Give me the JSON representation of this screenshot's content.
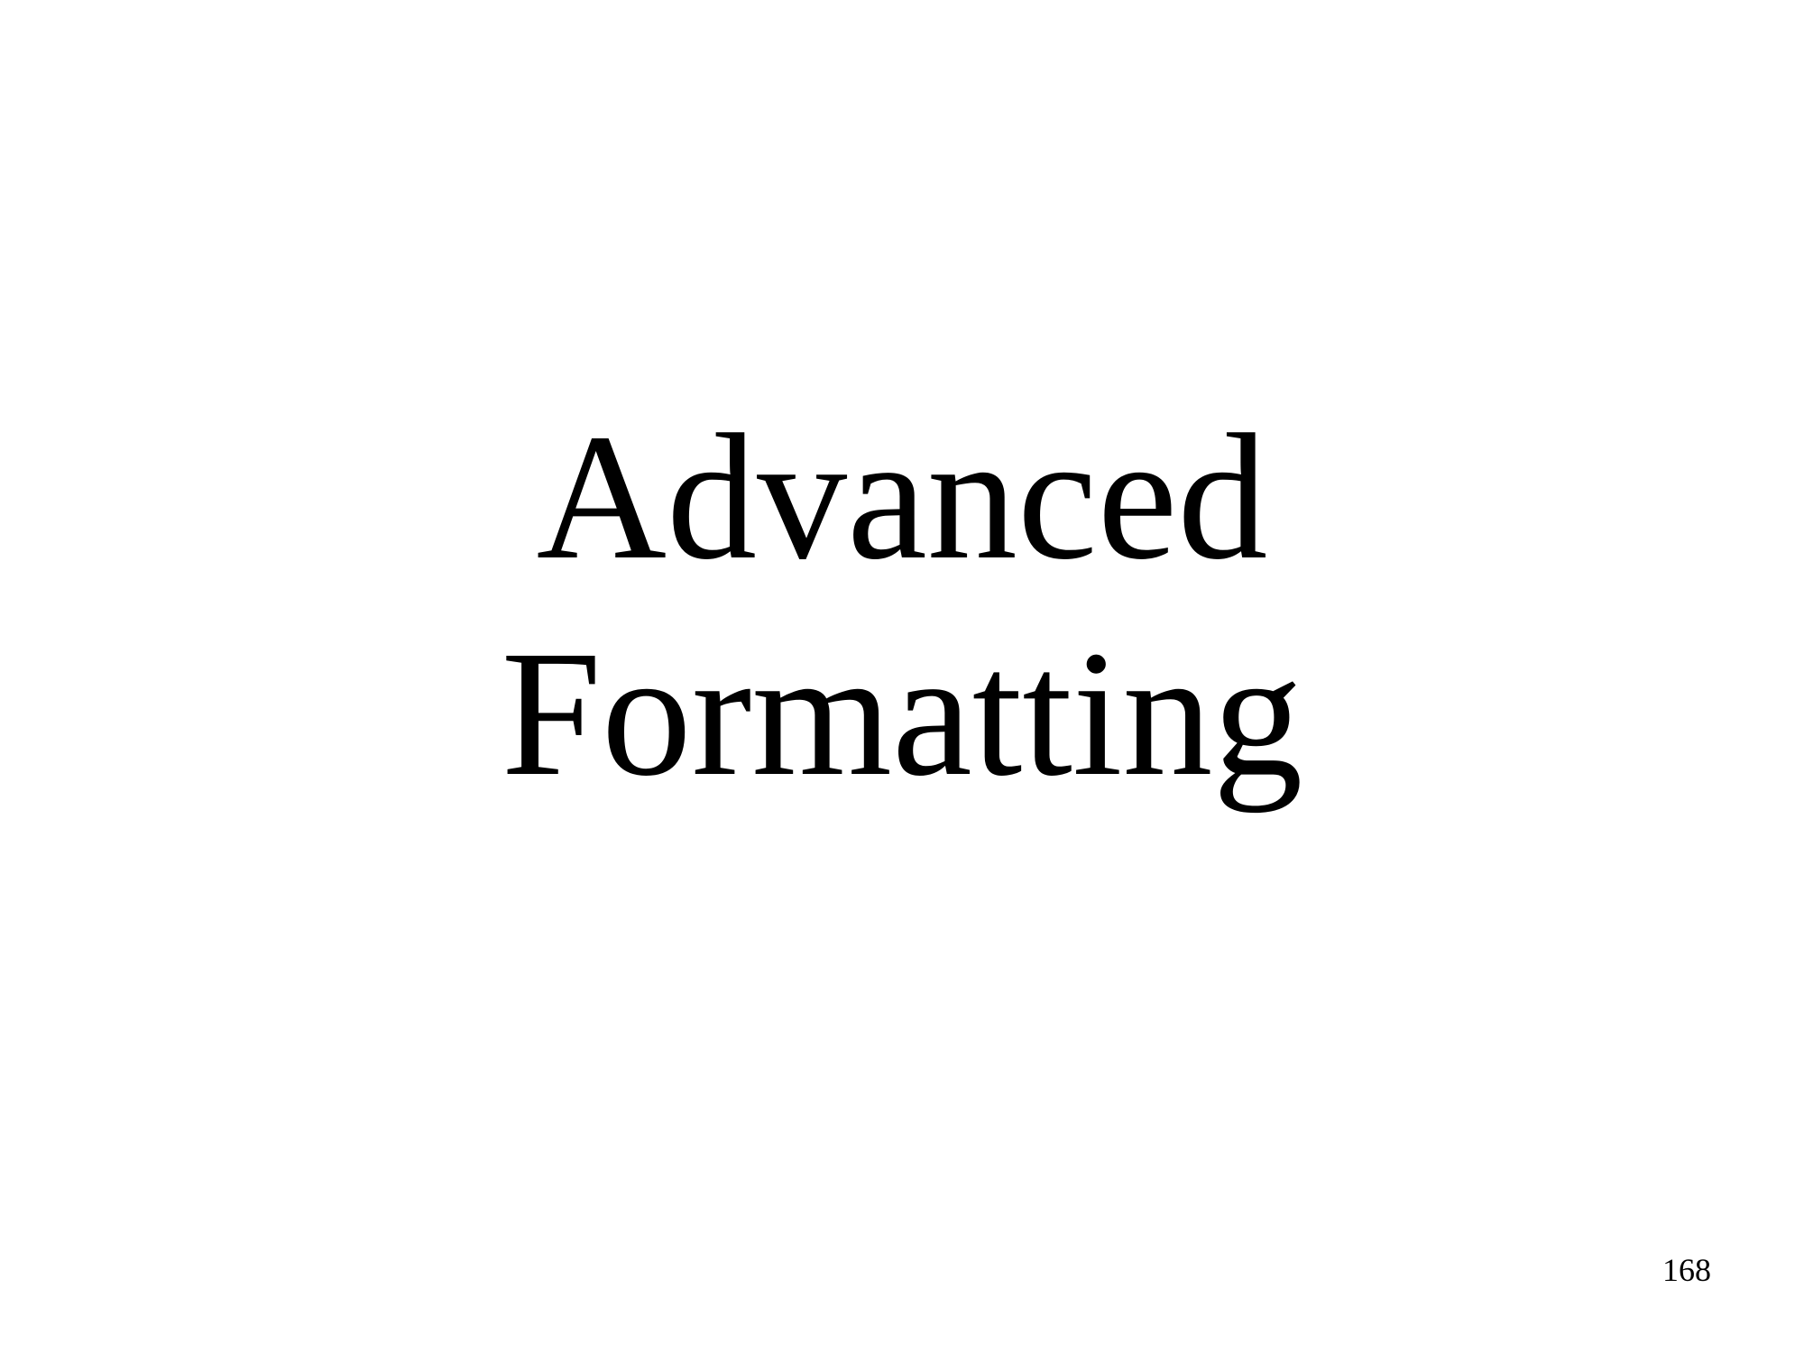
{
  "slide": {
    "title_lines": [
      "Advanced",
      "Formatting"
    ],
    "page_number": "168"
  }
}
